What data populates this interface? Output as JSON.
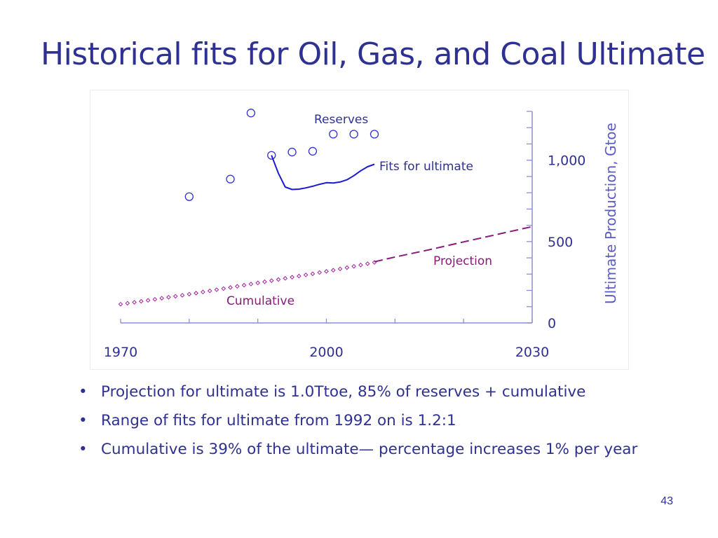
{
  "slide": {
    "title": "Historical fits for Oil, Gas, and Coal Ultimate",
    "page_number": "43"
  },
  "bullets": [
    "Projection for ultimate is  1.0Ttoe, 85% of reserves + cumulative",
    "Range of fits for ultimate from 1992 on is 1.2:1",
    "Cumulative is 39% of the ultimate— percentage increases 1% per year"
  ],
  "colors": {
    "title": "#2e3192",
    "reserves": "#3333cc",
    "fit": "#1a1ad6",
    "cumulative": "#a3239c",
    "projection": "#8a1a7a",
    "axis": "#8c8fd6"
  },
  "chart_data": {
    "type": "scatter",
    "xlim": [
      1970,
      2030
    ],
    "ylim": [
      0,
      1300
    ],
    "xticks": [
      1970,
      1980,
      1990,
      2000,
      2010,
      2020,
      2030
    ],
    "xtick_labels": [
      "1970",
      "2000",
      "2030"
    ],
    "xtick_label_values": [
      1970,
      2000,
      2030
    ],
    "yticks": [
      0,
      100,
      200,
      300,
      400,
      500,
      600,
      700,
      800,
      900,
      1000,
      1100,
      1200,
      1300
    ],
    "ytick_labels": [
      "0",
      "500",
      "1,000"
    ],
    "ytick_label_values": [
      0,
      500,
      1000
    ],
    "ylabel": "Ultimate Production, Gtoe",
    "xlabel": "",
    "grid": false,
    "series": [
      {
        "name": "Reserves",
        "style": "open-circle",
        "x": [
          1980,
          1986,
          1989,
          1992,
          1995,
          1998,
          2001,
          2004,
          2007
        ],
        "y": [
          776,
          884,
          1290,
          1030,
          1050,
          1055,
          1160,
          1160,
          1160
        ]
      },
      {
        "name": "Fits for ultimate",
        "style": "solid-line",
        "x": [
          1992,
          1993,
          1994,
          1995,
          1996,
          1997,
          1998,
          1999,
          2000,
          2001,
          2002,
          2003,
          2004,
          2005,
          2006,
          2007
        ],
        "y": [
          1030,
          920,
          835,
          820,
          822,
          830,
          840,
          852,
          862,
          860,
          866,
          880,
          905,
          935,
          960,
          975
        ]
      },
      {
        "name": "Cumulative",
        "style": "small-diamond",
        "x": [
          1970,
          1971,
          1972,
          1973,
          1974,
          1975,
          1976,
          1977,
          1978,
          1979,
          1980,
          1981,
          1982,
          1983,
          1984,
          1985,
          1986,
          1987,
          1988,
          1989,
          1990,
          1991,
          1992,
          1993,
          1994,
          1995,
          1996,
          1997,
          1998,
          1999,
          2000,
          2001,
          2002,
          2003,
          2004,
          2005,
          2006,
          2007
        ],
        "y": [
          115,
          121,
          127,
          133,
          139,
          145,
          152,
          158,
          164,
          170,
          177,
          183,
          190,
          197,
          204,
          211,
          218,
          225,
          232,
          239,
          246,
          253,
          260,
          267,
          274,
          281,
          288,
          295,
          302,
          310,
          317,
          324,
          332,
          340,
          348,
          356,
          364,
          372
        ]
      },
      {
        "name": "Projection",
        "style": "dashed-line",
        "x": [
          2007,
          2010,
          2015,
          2020,
          2025,
          2030
        ],
        "y": [
          376,
          405,
          450,
          498,
          545,
          592
        ]
      }
    ],
    "annotations": [
      "Reserves",
      "Fits for ultimate",
      "Projection",
      "Cumulative"
    ]
  }
}
